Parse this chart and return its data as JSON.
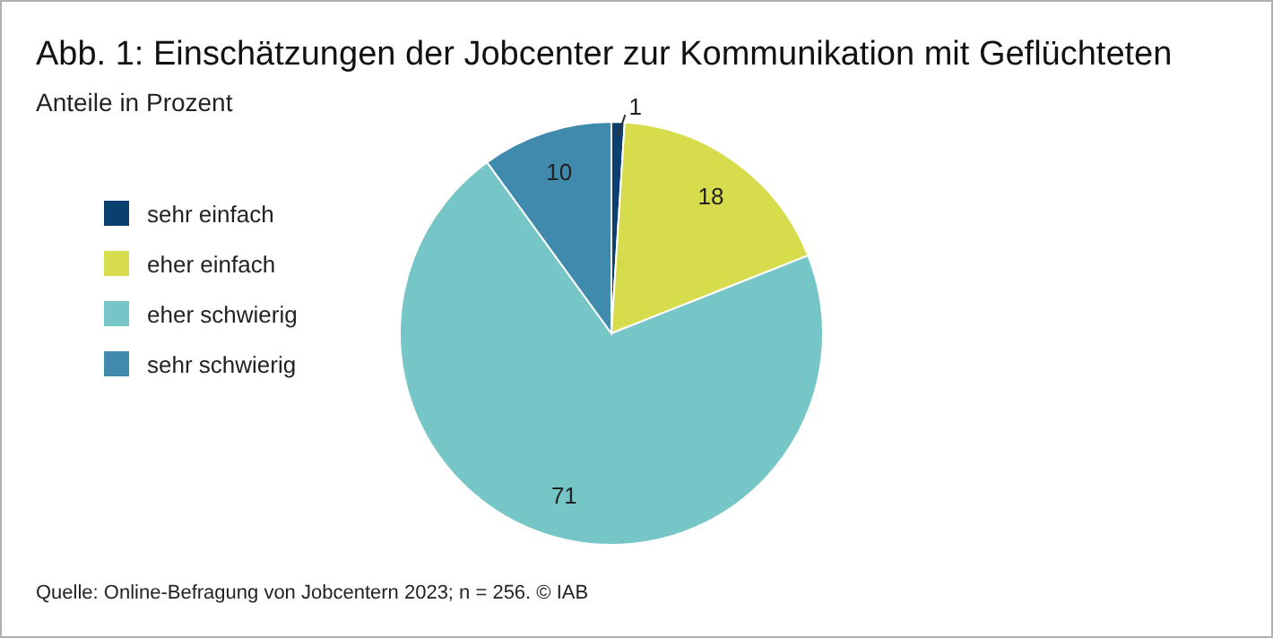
{
  "chart_data": {
    "type": "pie",
    "title": "Abb. 1: Einschätzungen der Jobcenter zur Kommunikation mit Geflüchteten",
    "subtitle": "Anteile in Prozent",
    "categories": [
      "sehr einfach",
      "eher einfach",
      "eher schwierig",
      "sehr schwierig"
    ],
    "values": [
      1,
      18,
      71,
      10
    ],
    "colors": [
      "#0b3f6e",
      "#d6dc4c",
      "#76c6c8",
      "#3f8aad"
    ],
    "data_labels": true,
    "legend": "left",
    "annotations": [
      "Quelle: Online-Befragung von Jobcentern 2023; n = 256. © IAB"
    ]
  }
}
